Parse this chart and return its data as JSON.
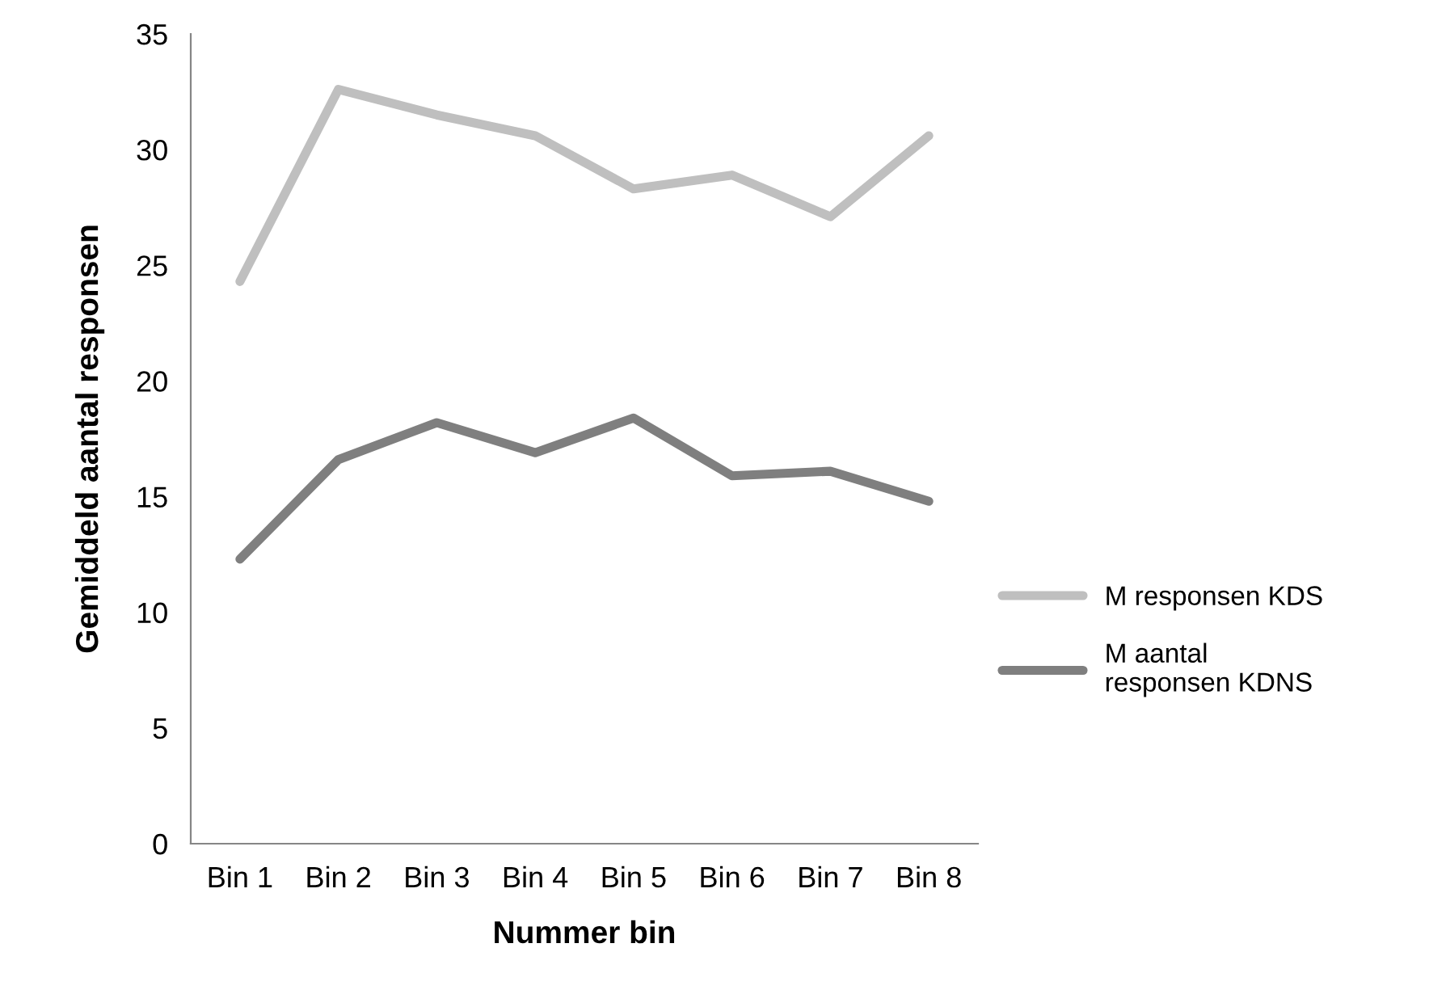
{
  "chart_data": {
    "type": "line",
    "xlabel": "Nummer bin",
    "ylabel": "Gemiddeld aantal responsen",
    "categories": [
      "Bin 1",
      "Bin 2",
      "Bin 3",
      "Bin 4",
      "Bin 5",
      "Bin 6",
      "Bin 7",
      "Bin 8"
    ],
    "series": [
      {
        "name": "M responsen KDS",
        "color": "#bfbfbf",
        "values": [
          24.3,
          32.6,
          31.5,
          30.6,
          28.3,
          28.9,
          27.1,
          30.6
        ]
      },
      {
        "name": "M aantal\nresponsen KDNS",
        "color": "#7f7f7f",
        "values": [
          12.3,
          16.6,
          18.2,
          16.9,
          18.4,
          15.9,
          16.1,
          14.8
        ]
      }
    ],
    "ylim": [
      0,
      35
    ],
    "yticks": [
      0,
      5,
      10,
      15,
      20,
      25,
      30,
      35
    ],
    "grid": false,
    "legend": "right",
    "marker": "none",
    "line_style": "solid"
  }
}
